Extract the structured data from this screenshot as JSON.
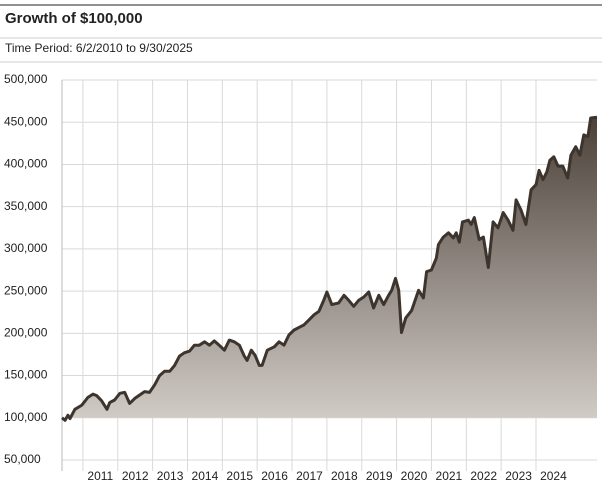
{
  "chart_data": {
    "type": "area",
    "title": "Growth of $100,000",
    "subtitle": "Time Period: 6/2/2010 to 9/30/2025",
    "color": "#3d342d",
    "grid": true,
    "x": [
      2010.4,
      2010.49,
      2010.57,
      2010.63,
      2010.77,
      2010.97,
      2011.14,
      2011.29,
      2011.4,
      2011.54,
      2011.69,
      2011.77,
      2011.91,
      2012.06,
      2012.2,
      2012.34,
      2012.49,
      2012.77,
      2012.91,
      2013.06,
      2013.2,
      2013.34,
      2013.49,
      2013.63,
      2013.77,
      2013.91,
      2014.06,
      2014.2,
      2014.34,
      2014.49,
      2014.63,
      2014.77,
      2014.91,
      2015.06,
      2015.2,
      2015.34,
      2015.49,
      2015.63,
      2015.71,
      2015.83,
      2015.94,
      2016.06,
      2016.14,
      2016.29,
      2016.49,
      2016.63,
      2016.77,
      2016.91,
      2017.06,
      2017.2,
      2017.34,
      2017.49,
      2017.63,
      2017.77,
      2017.91,
      2018.0,
      2018.14,
      2018.34,
      2018.49,
      2018.63,
      2018.77,
      2018.91,
      2019.06,
      2019.2,
      2019.34,
      2019.49,
      2019.63,
      2019.77,
      2019.86,
      2019.97,
      2020.06,
      2020.14,
      2020.26,
      2020.43,
      2020.63,
      2020.77,
      2020.86,
      2021.0,
      2021.14,
      2021.2,
      2021.34,
      2021.49,
      2021.63,
      2021.71,
      2021.8,
      2021.89,
      2022.06,
      2022.14,
      2022.23,
      2022.37,
      2022.49,
      2022.63,
      2022.77,
      2022.91,
      2023.06,
      2023.2,
      2023.34,
      2023.43,
      2023.57,
      2023.71,
      2023.86,
      2024.0,
      2024.09,
      2024.2,
      2024.31,
      2024.4,
      2024.51,
      2024.63,
      2024.77,
      2024.91,
      2025.0,
      2025.14,
      2025.26,
      2025.37,
      2025.49,
      2025.57,
      2025.75
    ],
    "values": [
      100000,
      97000,
      103000,
      99000,
      110000,
      115000,
      124000,
      128000,
      126000,
      120000,
      110000,
      118000,
      121000,
      129000,
      130000,
      117000,
      123000,
      131000,
      130000,
      139000,
      150000,
      155000,
      155000,
      162000,
      173000,
      177000,
      179000,
      186000,
      186000,
      190000,
      186000,
      191000,
      186000,
      180000,
      192000,
      190000,
      186000,
      173000,
      168000,
      180000,
      174000,
      162000,
      162000,
      180000,
      184000,
      190000,
      186000,
      198000,
      204000,
      207000,
      210000,
      216000,
      222000,
      226000,
      239000,
      249000,
      234000,
      236000,
      245000,
      239000,
      232000,
      239000,
      243000,
      249000,
      230000,
      245000,
      234000,
      245000,
      251000,
      265000,
      251000,
      201000,
      218000,
      227000,
      251000,
      242000,
      273000,
      275000,
      289000,
      305000,
      314000,
      319000,
      313000,
      319000,
      308000,
      332000,
      334000,
      329000,
      337000,
      311000,
      314000,
      278000,
      332000,
      325000,
      343000,
      334000,
      322000,
      358000,
      346000,
      329000,
      370000,
      376000,
      393000,
      382000,
      391000,
      405000,
      409000,
      398000,
      398000,
      384000,
      411000,
      421000,
      411000,
      435000,
      433000,
      455000,
      456000
    ],
    "xlim": [
      2010.4,
      2025.75
    ],
    "xticks": [
      2011,
      2012,
      2013,
      2014,
      2015,
      2016,
      2017,
      2018,
      2019,
      2020,
      2021,
      2022,
      2023,
      2024
    ],
    "ylim": [
      50000,
      500000
    ],
    "yticks": [
      {
        "value": 50000,
        "label": "50,000"
      },
      {
        "value": 100000,
        "label": "100,000"
      },
      {
        "value": 150000,
        "label": "150,000"
      },
      {
        "value": 200000,
        "label": "200,000"
      },
      {
        "value": 250000,
        "label": "250,000"
      },
      {
        "value": 300000,
        "label": "300,000"
      },
      {
        "value": 350000,
        "label": "350,000"
      },
      {
        "value": 400000,
        "label": "400,000"
      },
      {
        "value": 450000,
        "label": "450,000"
      },
      {
        "value": 500000,
        "label": "500,000"
      }
    ]
  }
}
